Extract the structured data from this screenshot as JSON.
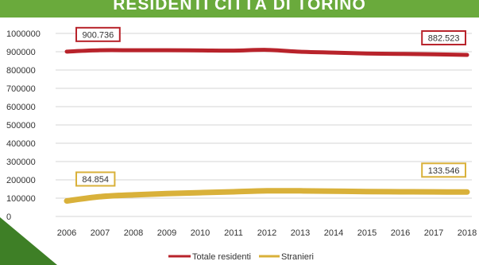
{
  "header": {
    "title": "RESIDENTI CITTÀ DI TORINO"
  },
  "colors": {
    "banner": "#6aaa3c",
    "corner": "#3e7f26",
    "residents": "#b8232b",
    "foreigners": "#d9b13a",
    "grid": "#d6d6d6"
  },
  "chart_data": {
    "type": "line",
    "title": "RESIDENTI CITTÀ DI TORINO",
    "x": [
      "2006",
      "2007",
      "2008",
      "2009",
      "2010",
      "2011",
      "2012",
      "2013",
      "2014",
      "2015",
      "2016",
      "2017",
      "2018"
    ],
    "ylim": [
      0,
      1000000
    ],
    "yticks": [
      "1000000",
      "900000",
      "800000",
      "700000",
      "600000",
      "500000",
      "400000",
      "300000",
      "200000",
      "100000",
      "0"
    ],
    "grid": true,
    "legend_position": "bottom",
    "series": [
      {
        "name": "Totale residenti",
        "values": [
          900736,
          908000,
          908000,
          908000,
          907000,
          906000,
          910000,
          900000,
          895000,
          890000,
          888000,
          886000,
          882523
        ],
        "labels": [
          {
            "index": 0,
            "text": "900.736"
          },
          {
            "index": 12,
            "text": "882.523"
          }
        ]
      },
      {
        "name": "Stranieri",
        "values": [
          84854,
          108000,
          118000,
          125000,
          130000,
          135000,
          140000,
          140000,
          138000,
          136000,
          135000,
          134000,
          133546
        ],
        "labels": [
          {
            "index": 0,
            "text": "84.854"
          },
          {
            "index": 12,
            "text": "133.546"
          }
        ]
      }
    ]
  }
}
